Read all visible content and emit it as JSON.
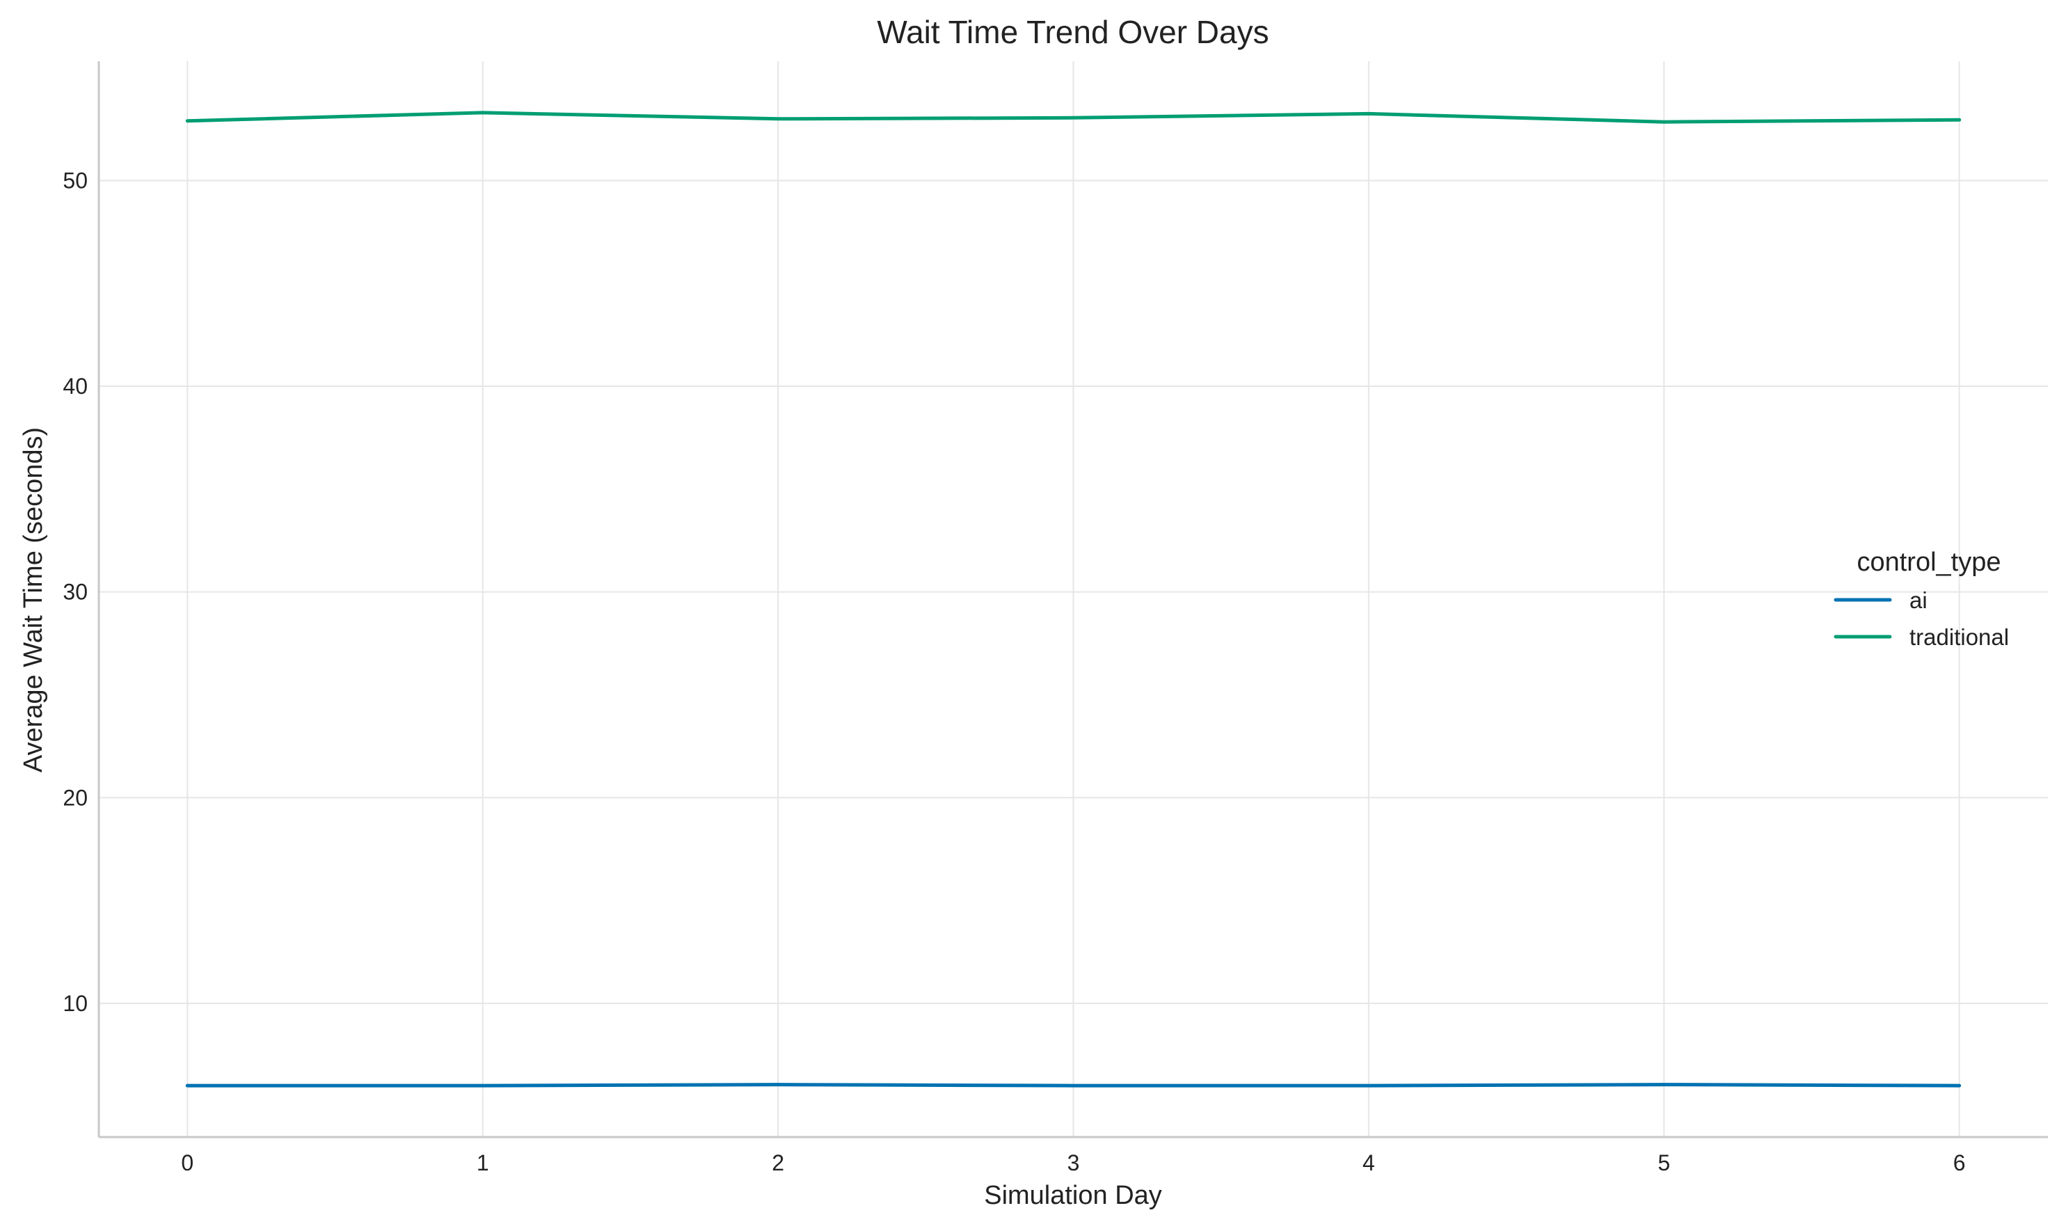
{
  "chart_data": {
    "type": "line",
    "title": "Wait Time Trend Over Days",
    "xlabel": "Simulation Day",
    "ylabel": "Average Wait Time (seconds)",
    "x": [
      0,
      1,
      2,
      3,
      4,
      5,
      6
    ],
    "x_ticks": [
      "0",
      "1",
      "2",
      "3",
      "4",
      "5",
      "6"
    ],
    "xlim": [
      -0.3,
      6.3
    ],
    "y_ticks": [
      "10",
      "20",
      "30",
      "40",
      "50"
    ],
    "y_tick_values": [
      10,
      20,
      30,
      40,
      50
    ],
    "ylim": [
      3.5,
      55.8
    ],
    "grid": true,
    "legend": {
      "title": "control_type",
      "placement": "center-right"
    },
    "series": [
      {
        "name": "ai",
        "color": "#0072b2",
        "values": [
          6.0,
          6.0,
          6.05,
          6.0,
          6.0,
          6.05,
          6.0
        ]
      },
      {
        "name": "traditional",
        "color": "#009e73",
        "values": [
          52.9,
          53.3,
          53.0,
          53.05,
          53.25,
          52.85,
          52.95
        ]
      }
    ]
  }
}
